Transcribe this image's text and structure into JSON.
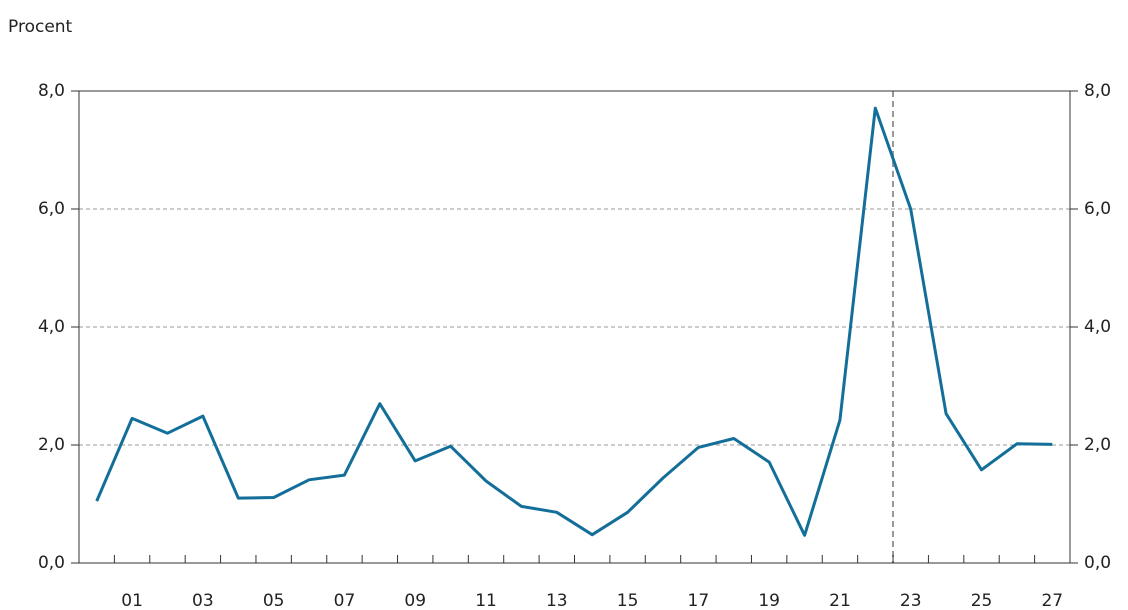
{
  "chart_data": {
    "type": "line",
    "y_label": "Procent",
    "categories": [
      null,
      "01",
      null,
      "03",
      null,
      "05",
      null,
      "07",
      null,
      "09",
      null,
      "11",
      null,
      "13",
      null,
      "15",
      null,
      "17",
      null,
      "19",
      null,
      "21",
      null,
      "23",
      null,
      "25",
      null,
      "27"
    ],
    "series": [
      {
        "color": "#136f99",
        "values": [
          1.05,
          2.45,
          2.2,
          2.49,
          1.1,
          1.11,
          1.41,
          1.49,
          2.7,
          1.73,
          1.98,
          1.39,
          0.96,
          0.86,
          0.48,
          0.86,
          1.44,
          1.96,
          2.11,
          1.71,
          0.47,
          2.42,
          7.71,
          6.0,
          2.53,
          1.58,
          2.02,
          2.01
        ]
      }
    ],
    "ylim": [
      0,
      8
    ],
    "yticks": [
      {
        "value": 0,
        "label": "0,0"
      },
      {
        "value": 2,
        "label": "2,0"
      },
      {
        "value": 4,
        "label": "4,0"
      },
      {
        "value": 6,
        "label": "6,0"
      },
      {
        "value": 8,
        "label": "8,0"
      }
    ],
    "y2lim": [
      0,
      8
    ],
    "y2ticks": [
      {
        "value": 0,
        "label": "0,0"
      },
      {
        "value": 2,
        "label": "2,0"
      },
      {
        "value": 4,
        "label": "4,0"
      },
      {
        "value": 6,
        "label": "6,0"
      },
      {
        "value": 8,
        "label": "8,0"
      }
    ],
    "grid": true
  }
}
